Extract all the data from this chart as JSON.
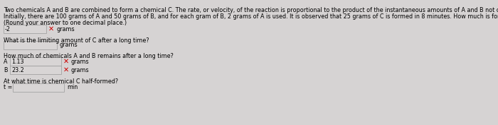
{
  "line1": "Two chemicals A and B are combined to form a chemical C. The rate, or velocity, of the reaction is proportional to the product of the instantaneous amounts of A and B not converted to chemical C.",
  "line2": "Initially, there are 100 grams of A and 50 grams of B, and for each gram of B, 2 grams of A is used. It is observed that 25 grams of C is formed in 8 minutes. How much is formed in 32 minutes?",
  "line3": "(Round your answer to one decimal place.)",
  "answer1_val": "-2",
  "answer1_suffix": "grams",
  "q2": "What is the limiting amount of C after a long time?",
  "answer2_suffix": "grams",
  "q3": "How much of chemicals A and B remains after a long time?",
  "label_A": "A",
  "answer_A": "1.13",
  "suffix_A": "grams",
  "label_B": "B",
  "answer_B": "23.2",
  "suffix_B": "grams",
  "q4": "At what time is chemical C half-formed?",
  "answer4_prefix": "t =",
  "answer4_suffix": "min",
  "bg_color": "#d6d3d3",
  "text_color": "#000000",
  "input_box_color": "#e8e8e8",
  "cross_color": "#cc0000",
  "font_size_body": 5.8,
  "cross_size": 7.0
}
